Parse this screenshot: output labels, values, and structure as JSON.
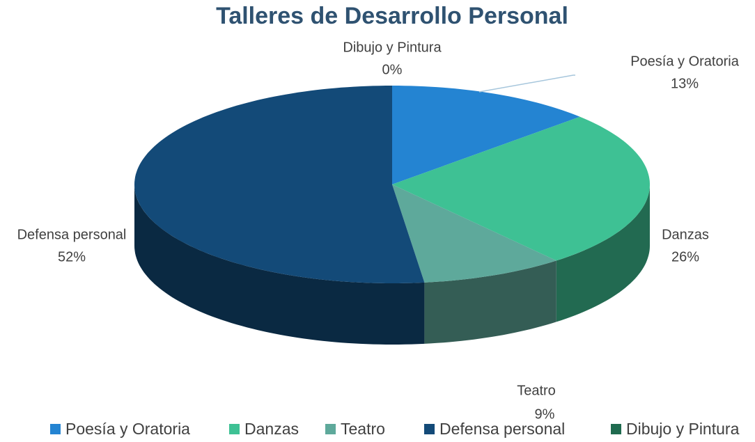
{
  "chart_data": {
    "type": "pie",
    "title": "Talleres de Desarrollo Personal",
    "categories": [
      "Poesía y Oratoria",
      "Danzas",
      "Teatro",
      "Defensa personal",
      "Dibujo y Pintura"
    ],
    "values": [
      13,
      26,
      9,
      52,
      0
    ],
    "value_labels": [
      "13%",
      "26%",
      "9%",
      "52%",
      "0%"
    ],
    "colors": [
      "#2484d2",
      "#3ec194",
      "#5ea99b",
      "#134a78",
      "#1f6b4f"
    ],
    "legend": "bottom"
  }
}
